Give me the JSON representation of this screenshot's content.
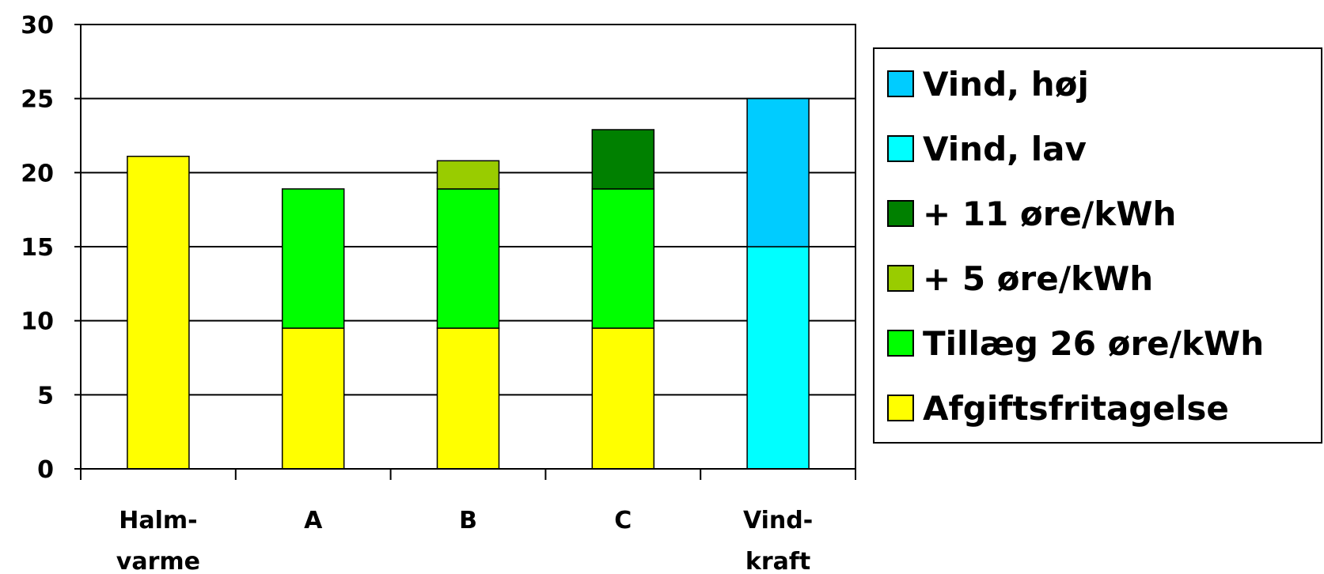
{
  "chart_data": {
    "type": "bar",
    "stacked": true,
    "title": "",
    "xlabel": "",
    "ylabel": "",
    "ylim": [
      0,
      30
    ],
    "yticks": [
      0,
      5,
      10,
      15,
      20,
      25,
      30
    ],
    "grid": true,
    "legend_position": "right",
    "categories": [
      [
        "Halm-",
        "varme"
      ],
      [
        "A"
      ],
      [
        "B"
      ],
      [
        "C"
      ],
      [
        "Vind-",
        "kraft"
      ]
    ],
    "series": [
      {
        "name": "Afgiftsfritagelse",
        "color": "#ffff00",
        "values": [
          21.1,
          9.5,
          9.5,
          9.5,
          0
        ]
      },
      {
        "name": "Tillæg 26 øre/kWh",
        "color": "#00ff00",
        "values": [
          0,
          9.4,
          9.4,
          9.4,
          0
        ]
      },
      {
        "name": "+ 5 øre/kWh",
        "color": "#99cc00",
        "values": [
          0,
          0,
          1.9,
          0,
          0
        ]
      },
      {
        "name": "+ 11 øre/kWh",
        "color": "#008000",
        "values": [
          0,
          0,
          0,
          4.0,
          0
        ]
      },
      {
        "name": "Vind, lav",
        "color": "#00ffff",
        "values": [
          0,
          0,
          0,
          0,
          15
        ]
      },
      {
        "name": "Vind, høj",
        "color": "#00ccff",
        "values": [
          0,
          0,
          0,
          0,
          10
        ]
      }
    ],
    "legend_order": [
      "Vind, høj",
      "Vind, lav",
      "+ 11 øre/kWh",
      "+ 5 øre/kWh",
      "Tillæg 26 øre/kWh",
      "Afgiftsfritagelse"
    ]
  }
}
